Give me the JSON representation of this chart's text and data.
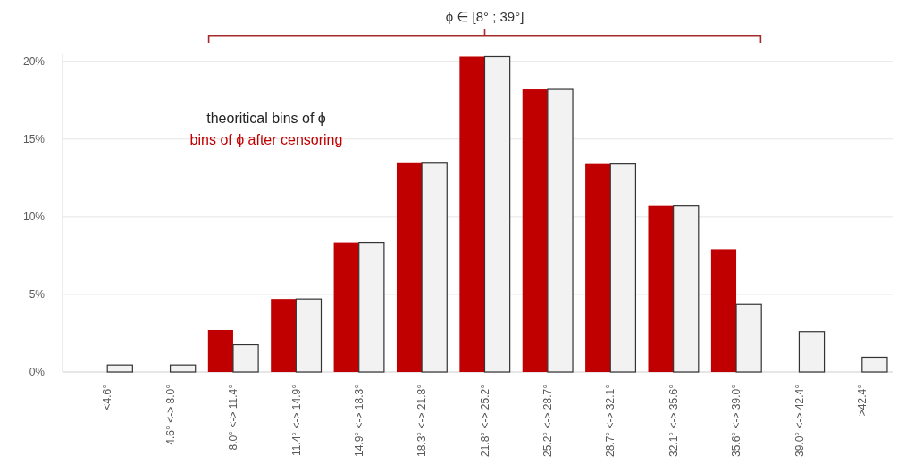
{
  "chart_data": {
    "type": "bar",
    "categories": [
      "<4.6°",
      "4.6° <-> 8.0°",
      "8.0° <-> 11.4°",
      "11.4° <-> 14.9°",
      "14.9° <-> 18.3°",
      "18.3° <-> 21.8°",
      "21.8° <-> 25.2°",
      "25.2° <-> 28.7°",
      "28.7° <-> 32.1°",
      "32.1° <-> 35.6°",
      "35.6° <-> 39.0°",
      "39.0° <-> 42.4°",
      ">42.4°"
    ],
    "series": [
      {
        "name": "bins of ϕ after censoring",
        "color": "#c00000",
        "values": [
          null,
          null,
          2.7,
          4.7,
          8.35,
          13.45,
          20.3,
          18.2,
          13.4,
          10.7,
          7.9,
          null,
          null
        ]
      },
      {
        "name": "theoritical bins of ϕ",
        "color": "#f2f2f2",
        "values": [
          0.45,
          0.45,
          1.75,
          4.7,
          8.35,
          13.45,
          20.3,
          18.2,
          13.4,
          10.7,
          4.35,
          2.6,
          0.95
        ]
      }
    ],
    "ylim": [
      0,
      20.5
    ],
    "yticks": [
      {
        "value": 0,
        "label": "0%"
      },
      {
        "value": 5,
        "label": "5%"
      },
      {
        "value": 10,
        "label": "10%"
      },
      {
        "value": 15,
        "label": "15%"
      },
      {
        "value": 20,
        "label": "20%"
      }
    ],
    "grid": "y",
    "legend": "top left",
    "annotations": [
      "ϕ ∈ [8° ; 39°]"
    ]
  }
}
